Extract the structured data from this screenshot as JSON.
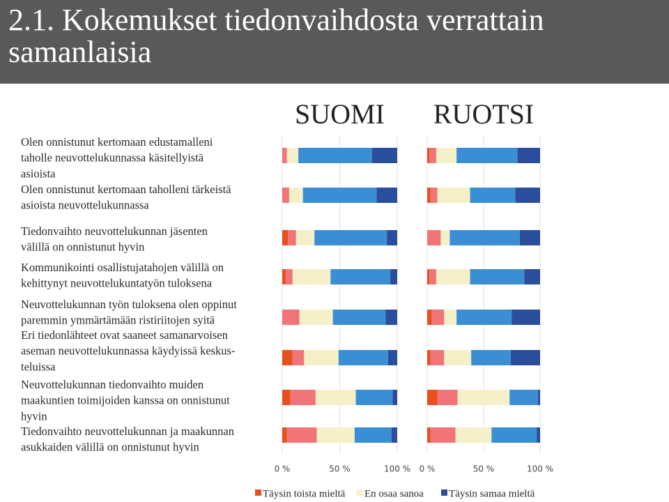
{
  "title": "2.1. Kokemukset tiedonvaihdosta verrattain samanlaisia",
  "statements": [
    [
      "Olen onnistunut kertomaan edustamalleni",
      "taholle neuvottelukunnassa käsitellyistä",
      "asioista"
    ],
    [
      "Olen onnistunut kertomaan taholleni tärkeistä",
      "asioista neuvottelukunnassa"
    ],
    [
      "Tiedonvaihto neuvottelukunnan jäsenten",
      "välillä on onnistunut hyvin"
    ],
    [
      "Kommunikointi osallistujatahojen välillä on",
      "kehittynyt neuvottelukuntatyön tuloksena"
    ],
    [
      "Neuvottelukunnan työn tuloksena olen oppinut",
      "paremmin ymmärtämään ristiriitojen syitä"
    ],
    [
      "Eri tiedonlähteet ovat saaneet samanarvoisen",
      "aseman neuvottelukunnassa käydyissä keskus-",
      "teluissa"
    ],
    [
      "Neuvottelukunnan tiedonvaihto muiden",
      "maakuntien toimijoiden kanssa on onnistunut",
      "hyvin"
    ],
    [
      "Tiedonvaihto neuvottelukunnan ja maakunnan",
      "asukkaiden välillä on onnistunut hyvin"
    ]
  ],
  "chart_data": [
    {
      "type": "bar",
      "orientation": "horizontal",
      "stacked": true,
      "title": "SUOMI",
      "xlim": [
        0,
        100
      ],
      "xticks": [
        {
          "value": 0,
          "label": "0 %"
        },
        {
          "value": 50,
          "label": "50 %"
        },
        {
          "value": 100,
          "label": "100 %"
        }
      ],
      "grid": true,
      "series": [
        {
          "name": "Täysin toista mieltä",
          "color": "#e8501e",
          "values": [
            0,
            0,
            5,
            3,
            0,
            9,
            7,
            4
          ]
        },
        {
          "color": "#f07478",
          "values": [
            4,
            6,
            7,
            6,
            15,
            10,
            22,
            26
          ]
        },
        {
          "name": "En osaa sanoa",
          "color": "#f5f0c8",
          "values": [
            10,
            12,
            16,
            33,
            29,
            30,
            35,
            33
          ]
        },
        {
          "color": "#3a8fd4",
          "values": [
            64,
            64,
            63,
            52,
            46,
            43,
            32,
            32
          ]
        },
        {
          "name": "Täysin samaa mieltä",
          "color": "#2a4d9c",
          "values": [
            22,
            18,
            9,
            6,
            10,
            8,
            4,
            5
          ]
        }
      ]
    },
    {
      "type": "bar",
      "orientation": "horizontal",
      "stacked": true,
      "title": "RUOTSI",
      "xlim": [
        0,
        100
      ],
      "xticks": [
        {
          "value": 0,
          "label": "0 %"
        },
        {
          "value": 50,
          "label": "50 %"
        },
        {
          "value": 100,
          "label": "100 %"
        }
      ],
      "grid": true,
      "series": [
        {
          "color": "#e8501e",
          "values": [
            2,
            3,
            0,
            2,
            4,
            3,
            9,
            3
          ]
        },
        {
          "color": "#f07478",
          "values": [
            6,
            6,
            12,
            6,
            11,
            12,
            18,
            22
          ]
        },
        {
          "color": "#f5f0c8",
          "values": [
            18,
            29,
            8,
            30,
            11,
            24,
            46,
            32
          ]
        },
        {
          "color": "#3a8fd4",
          "values": [
            54,
            40,
            62,
            48,
            49,
            35,
            25,
            40
          ]
        },
        {
          "color": "#2a4d9c",
          "values": [
            20,
            22,
            18,
            14,
            25,
            26,
            2,
            3
          ]
        }
      ]
    }
  ]
}
